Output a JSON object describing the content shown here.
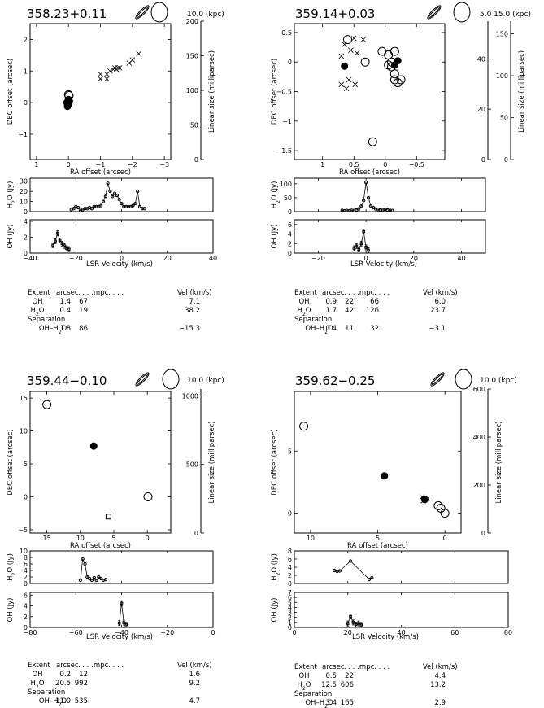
{
  "chart_data": [
    {
      "type": "scatter",
      "title": "358.23+0.11",
      "scale_labels": [
        "10.0",
        "(kpc)"
      ],
      "map": {
        "xlabel": "RA offset (arcsec)",
        "ylabel": "DEC offset (arcsec)",
        "xlim": [
          1.2,
          -3.2
        ],
        "ylim": [
          -1.8,
          2.5
        ],
        "xticks": [
          1,
          0,
          -1,
          -2,
          -3
        ],
        "yticks": [
          -1,
          0,
          1,
          2
        ],
        "ylabel_right": "Linear size (milliparsec)",
        "scales": [
          {
            "label": "",
            "min": 0,
            "max": 200,
            "ticks": [
              0,
              50,
              100,
              150,
              200
            ]
          }
        ],
        "oh": [
          [
            0.0,
            0.25
          ],
          [
            -0.02,
            0.22
          ]
        ],
        "h2o_filled": [
          [
            0.0,
            -0.05
          ],
          [
            0.02,
            -0.08
          ],
          [
            0.05,
            0.0
          ],
          [
            -0.03,
            0.05
          ],
          [
            0.0,
            0.1
          ],
          [
            0.03,
            -0.12
          ]
        ],
        "h2o_cross": [
          [
            -1.0,
            0.75
          ],
          [
            -1.0,
            0.9
          ],
          [
            -1.2,
            0.75
          ],
          [
            -1.2,
            0.9
          ],
          [
            -1.3,
            1.0
          ],
          [
            -1.4,
            1.05
          ],
          [
            -1.45,
            1.1
          ],
          [
            -1.5,
            1.05
          ],
          [
            -1.55,
            1.1
          ],
          [
            -1.6,
            1.1
          ],
          [
            -1.9,
            1.25
          ],
          [
            -2.0,
            1.35
          ],
          [
            -2.2,
            1.55
          ]
        ]
      },
      "spectra": {
        "xlabel": "LSR Velocity (km/s)",
        "xlim": [
          -40,
          40
        ],
        "xticks": [
          -40,
          -20,
          0,
          20,
          40
        ],
        "h2o": {
          "ylabel": "H2O (Jy)",
          "ylim": [
            0,
            33
          ],
          "yticks": [
            0,
            10,
            20,
            30
          ],
          "x": [
            -22,
            -21,
            -20,
            -19,
            -18,
            -17,
            -16,
            -15,
            -14,
            -13,
            -12,
            -11,
            -10,
            -9,
            -8,
            -7,
            -6,
            -5,
            -4,
            -3,
            -2,
            -1,
            0,
            1,
            2,
            3,
            4,
            5,
            6,
            7,
            8,
            9,
            10
          ],
          "y": [
            2,
            3,
            5,
            4,
            1,
            2,
            3,
            3,
            4,
            3,
            5,
            5,
            5,
            6,
            10,
            15,
            28,
            20,
            15,
            18,
            16,
            12,
            8,
            5,
            5,
            5,
            5,
            6,
            8,
            20,
            5,
            3,
            3
          ]
        },
        "oh": {
          "ylabel": "OH (Jy)",
          "ylim": [
            0,
            4.2
          ],
          "yticks": [
            0,
            2,
            4
          ],
          "x": [
            -30,
            -29,
            -28,
            -27,
            -26,
            -25,
            -24,
            -23
          ],
          "y": [
            1.0,
            1.5,
            2.5,
            1.6,
            1.2,
            0.9,
            0.6,
            0.5
          ]
        }
      },
      "table": {
        "headers": [
          "Extent",
          "arcsec",
          ". . . .mpc. . . .",
          "Vel (km/s)"
        ],
        "rows": [
          [
            "OH",
            "1.4",
            "67",
            "",
            "7.1"
          ],
          [
            "H2O",
            "0.4",
            "19",
            "",
            "38.2"
          ]
        ],
        "separation_label": "Separation",
        "sep_row": [
          "OH–H2O",
          "1.8",
          "86",
          "",
          "−15.3"
        ]
      }
    },
    {
      "type": "scatter",
      "title": "359.14+0.03",
      "scale_labels": [
        "5.0",
        "15.0",
        "(kpc)"
      ],
      "map": {
        "xlabel": "RA offset (arcsec)",
        "ylabel": "DEC offset (arcsec)",
        "xlim": [
          1.45,
          -0.95
        ],
        "ylim": [
          -1.65,
          0.65
        ],
        "xticks": [
          1,
          0.5,
          0,
          -0.5
        ],
        "yticks": [
          -1.5,
          -1,
          -0.5,
          0,
          0.5
        ],
        "ylabel_right": "Linear size (milliparsec)",
        "scales": [
          {
            "label": "",
            "min": 0,
            "max": 55,
            "ticks": [
              0,
              20,
              40
            ]
          },
          {
            "label": "",
            "min": 0,
            "max": 165,
            "ticks": [
              0,
              50,
              100,
              150
            ]
          }
        ],
        "oh": [
          [
            0.6,
            0.38
          ],
          [
            0.32,
            0.0
          ],
          [
            -0.15,
            0.18
          ],
          [
            0.05,
            0.18
          ],
          [
            -0.1,
            0.0
          ],
          [
            -0.1,
            -0.08
          ],
          [
            -0.15,
            -0.2
          ],
          [
            -0.2,
            -0.35
          ],
          [
            -0.25,
            -0.3
          ],
          [
            -0.15,
            -0.3
          ],
          [
            -0.05,
            -0.05
          ],
          [
            0.2,
            -1.35
          ],
          [
            -0.05,
            0.12
          ]
        ],
        "h2o_filled": [
          [
            0.65,
            -0.07
          ],
          [
            -0.15,
            -0.05
          ],
          [
            -0.2,
            0.02
          ]
        ],
        "h2o_cross": [
          [
            0.5,
            0.4
          ],
          [
            0.65,
            0.3
          ],
          [
            0.55,
            0.2
          ],
          [
            0.45,
            0.15
          ],
          [
            0.7,
            0.1
          ],
          [
            0.58,
            -0.3
          ],
          [
            0.48,
            -0.38
          ],
          [
            0.62,
            -0.45
          ],
          [
            0.7,
            -0.38
          ],
          [
            0.35,
            0.38
          ]
        ]
      },
      "spectra": {
        "xlabel": "LSR Velocity (km/s)",
        "xlim": [
          -30,
          50
        ],
        "xticks": [
          -20,
          0,
          20,
          40
        ],
        "h2o": {
          "ylabel": "H2O (Jy)",
          "ylim": [
            0,
            120
          ],
          "yticks": [
            0,
            50,
            100
          ],
          "x": [
            -10,
            -9,
            -8,
            -7,
            -6,
            -5,
            -4,
            -3,
            -2,
            -1,
            0,
            1,
            2,
            3,
            4,
            5,
            6,
            7,
            8,
            9,
            10,
            11
          ],
          "y": [
            5,
            3,
            4,
            3,
            5,
            4,
            6,
            10,
            20,
            40,
            105,
            50,
            20,
            15,
            10,
            8,
            6,
            5,
            8,
            6,
            5,
            4
          ]
        },
        "oh": {
          "ylabel": "OH (Jy)",
          "ylim": [
            0,
            7
          ],
          "yticks": [
            0,
            2,
            4,
            6
          ],
          "x": [
            -5,
            -4,
            -3,
            -2,
            -1,
            0,
            1
          ],
          "y": [
            1.0,
            1.5,
            0.8,
            2.0,
            4.5,
            1.2,
            0.6
          ]
        }
      },
      "table": {
        "headers": [
          "Extent",
          "arcsec",
          ". . . .mpc. . . .",
          "Vel (km/s)"
        ],
        "rows": [
          [
            "OH",
            "0.9",
            "22",
            "66",
            "6.0"
          ],
          [
            "H2O",
            "1.7",
            "42",
            "126",
            "23.7"
          ]
        ],
        "separation_label": "Separation",
        "sep_row": [
          "OH–H2O",
          "0.4",
          "11",
          "32",
          "−3.1"
        ]
      }
    },
    {
      "type": "scatter",
      "title": "359.44−0.10",
      "scale_labels": [
        "10.0",
        "(kpc)"
      ],
      "map": {
        "xlabel": "RA offset (arcsec)",
        "ylabel": "DEC offset (arcsec)",
        "xlim": [
          17.5,
          -3.5
        ],
        "ylim": [
          -5.5,
          16
        ],
        "xticks": [
          15,
          10,
          5,
          0
        ],
        "yticks": [
          -5,
          0,
          5,
          10,
          15
        ],
        "ylabel_right": "Linear size (milliparsec)",
        "scales": [
          {
            "label": "",
            "min": 0,
            "max": 1050,
            "ticks": [
              0,
              500,
              1000
            ]
          }
        ],
        "oh": [
          [
            15.0,
            14.0
          ],
          [
            -0.1,
            0.0
          ]
        ],
        "h2o_filled": [
          [
            8.0,
            7.7
          ]
        ],
        "h2o_square": [
          [
            5.8,
            -3.0
          ]
        ],
        "h2o_cross": []
      },
      "spectra": {
        "xlabel": "LSR Velocity (km/s)",
        "xlim": [
          -80,
          0
        ],
        "xticks": [
          -80,
          -60,
          -40,
          -20,
          0
        ],
        "h2o": {
          "ylabel": "H2O (Jy)",
          "ylim": [
            0,
            10
          ],
          "yticks": [
            0,
            2,
            4,
            6,
            8,
            10
          ],
          "x": [
            -58,
            -57,
            -56,
            -55,
            -54,
            -53,
            -52,
            -51,
            -50,
            -49,
            -48,
            -47
          ],
          "y": [
            1.0,
            7.5,
            6.0,
            2.0,
            1.5,
            1.0,
            1.8,
            1.0,
            2.0,
            1.5,
            1.0,
            1.2
          ]
        },
        "oh": {
          "ylabel": "OH (Jy)",
          "ylim": [
            0,
            6.5
          ],
          "yticks": [
            0,
            2,
            4,
            6
          ],
          "x": [
            -41,
            -40,
            -39,
            -38
          ],
          "y": [
            0.8,
            4.5,
            0.9,
            0.5
          ]
        }
      },
      "table": {
        "headers": [
          "Extent",
          "arcsec",
          ". . . .mpc. . . .",
          "Vel (km/s)"
        ],
        "rows": [
          [
            "OH",
            "0.2",
            "12",
            "",
            "1.6"
          ],
          [
            "H2O",
            "20.5",
            "992",
            "",
            "9.2"
          ]
        ],
        "separation_label": "Separation",
        "sep_row": [
          "OH–H2O",
          "11.0",
          "535",
          "",
          "4.7"
        ]
      }
    },
    {
      "type": "scatter",
      "title": "359.62−0.25",
      "scale_labels": [
        "10.0",
        "(kpc)"
      ],
      "map": {
        "xlabel": "RA offset (arcsec)",
        "ylabel": "DEC offset (arcsec)",
        "xlim": [
          11.2,
          -1.2
        ],
        "ylim": [
          -1.6,
          9.8
        ],
        "xticks": [
          10,
          5,
          0
        ],
        "yticks": [
          0,
          5
        ],
        "ylabel_right": "Linear size (milliparsec)",
        "scales": [
          {
            "label": "",
            "min": 0,
            "max": 600,
            "ticks": [
              0,
              200,
              400,
              600
            ]
          }
        ],
        "oh": [
          [
            10.5,
            7.0
          ],
          [
            0.5,
            0.6
          ],
          [
            0.0,
            0.0
          ],
          [
            0.3,
            0.4
          ]
        ],
        "h2o_filled": [
          [
            4.5,
            3.0
          ],
          [
            1.5,
            1.1
          ]
        ],
        "h2o_cross": [
          [
            1.7,
            1.3
          ],
          [
            1.6,
            1.0
          ],
          [
            1.3,
            1.2
          ]
        ]
      },
      "spectra": {
        "xlabel": "LSR Velocity (km/s)",
        "xlim": [
          0,
          80
        ],
        "xticks": [
          0,
          20,
          40,
          60,
          80
        ],
        "h2o": {
          "ylabel": "H2O (Jy)",
          "ylim": [
            0,
            8
          ],
          "yticks": [
            0,
            2,
            4,
            6,
            8
          ],
          "x": [
            15,
            16,
            17,
            21,
            28,
            29
          ],
          "y": [
            3.2,
            3.0,
            3.1,
            5.5,
            1.0,
            1.4
          ]
        },
        "oh": {
          "ylabel": "OH (Jy)",
          "ylim": [
            0,
            7
          ],
          "yticks": [
            0,
            1,
            2,
            3,
            4,
            5,
            6,
            7
          ],
          "x": [
            20,
            21,
            22,
            23,
            24,
            25
          ],
          "y": [
            0.8,
            2.2,
            1.0,
            0.6,
            0.8,
            0.5
          ]
        }
      },
      "table": {
        "headers": [
          "Extent",
          "arcsec",
          ". . . .mpc. . . .",
          "Vel (km/s)"
        ],
        "rows": [
          [
            "OH",
            "0.5",
            "22",
            "",
            "4.4"
          ],
          [
            "H2O",
            "12.5",
            "606",
            "",
            "13.2"
          ]
        ],
        "separation_label": "Separation",
        "sep_row": [
          "OH–H2O",
          "3.4",
          "165",
          "",
          "2.9"
        ]
      }
    }
  ]
}
